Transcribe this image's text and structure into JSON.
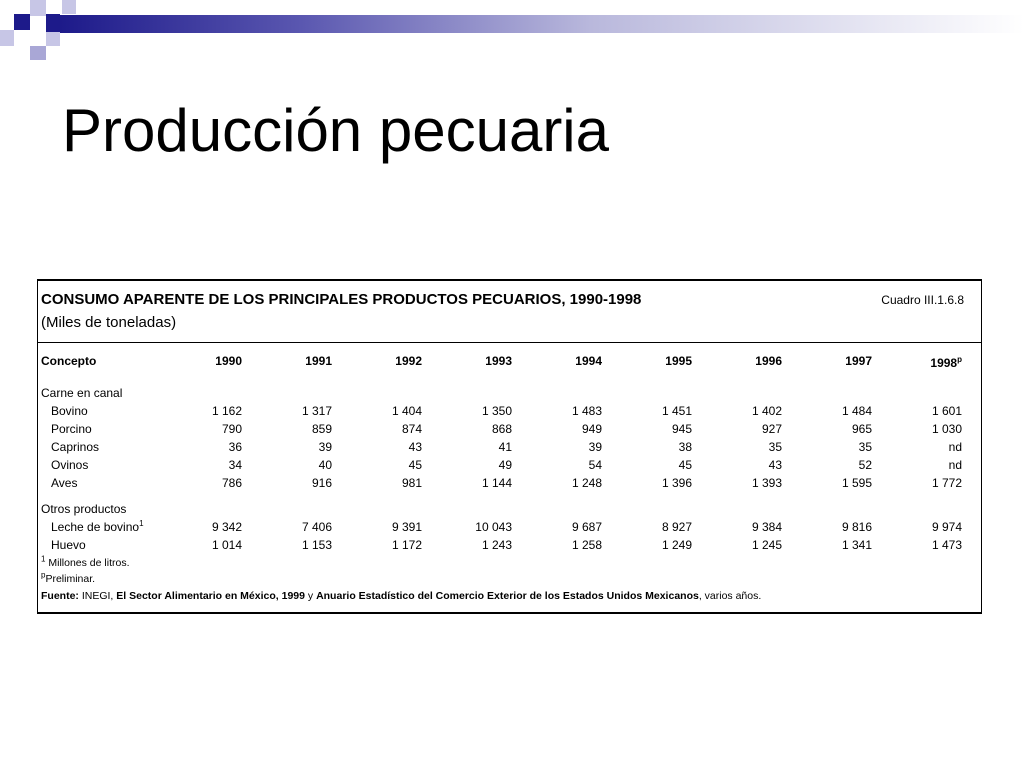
{
  "slide": {
    "title": "Producción pecuaria"
  },
  "table": {
    "title": "CONSUMO APARENTE DE LOS PRINCIPALES PRODUCTOS PECUARIOS, 1990-1998",
    "subtitle": "(Miles de toneladas)",
    "code": "Cuadro III.1.6.8",
    "header": {
      "concept": "Concepto",
      "years": [
        "1990",
        "1991",
        "1992",
        "1993",
        "1994",
        "1995",
        "1996",
        "1997",
        "1998"
      ],
      "last_year_sup": "p"
    },
    "groups": [
      {
        "label": "Carne en canal",
        "rows": [
          {
            "label": "Bovino",
            "sup": "",
            "values": [
              "1 162",
              "1 317",
              "1 404",
              "1 350",
              "1 483",
              "1 451",
              "1 402",
              "1 484",
              "1 601"
            ]
          },
          {
            "label": "Porcino",
            "sup": "",
            "values": [
              "790",
              "859",
              "874",
              "868",
              "949",
              "945",
              "927",
              "965",
              "1 030"
            ]
          },
          {
            "label": "Caprinos",
            "sup": "",
            "values": [
              "36",
              "39",
              "43",
              "41",
              "39",
              "38",
              "35",
              "35",
              "nd"
            ]
          },
          {
            "label": "Ovinos",
            "sup": "",
            "values": [
              "34",
              "40",
              "45",
              "49",
              "54",
              "45",
              "43",
              "52",
              "nd"
            ]
          },
          {
            "label": "Aves",
            "sup": "",
            "values": [
              "786",
              "916",
              "981",
              "1 144",
              "1 248",
              "1 396",
              "1 393",
              "1 595",
              "1 772"
            ]
          }
        ]
      },
      {
        "label": "Otros productos",
        "rows": [
          {
            "label": "Leche de bovino",
            "sup": "1",
            "values": [
              "9 342",
              "7 406",
              "9 391",
              "10 043",
              "9 687",
              "8 927",
              "9 384",
              "9 816",
              "9 974"
            ]
          },
          {
            "label": "Huevo",
            "sup": "",
            "values": [
              "1 014",
              "1 153",
              "1 172",
              "1 243",
              "1 258",
              "1 249",
              "1 245",
              "1 341",
              "1 473"
            ]
          }
        ]
      }
    ],
    "footnotes": {
      "note1_mark": "1",
      "note1_text": "Millones de litros.",
      "note2_mark": "p",
      "note2_text": "Preliminar.",
      "source_label": "Fuente:",
      "source_inegi": "INEGI,",
      "source_title1": "El Sector Alimentario en México, 1999",
      "source_and": "y",
      "source_title2": "Anuario Estadístico del Comercio Exterior de los Estados Unidos Mexicanos",
      "source_tail": ", varios años."
    }
  }
}
